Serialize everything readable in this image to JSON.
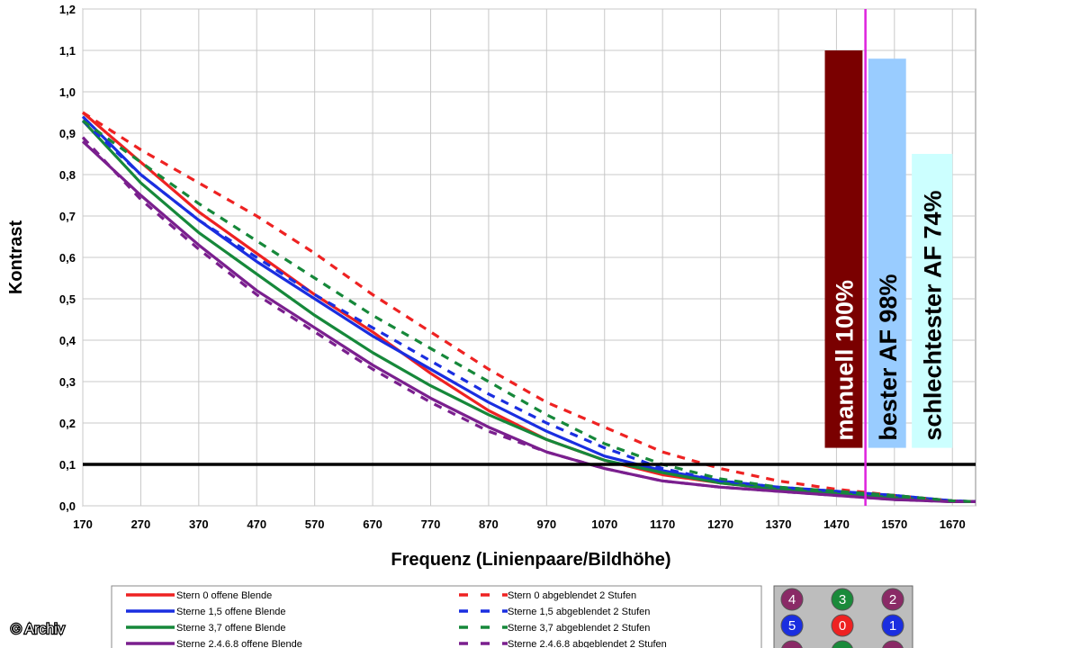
{
  "chart_data": {
    "type": "line",
    "title": "",
    "xlabel": "Frequenz (Linienpaare/Bildhöhe)",
    "ylabel": "Kontrast",
    "xlim": [
      170,
      1710
    ],
    "ylim": [
      0,
      1.2
    ],
    "x_ticks": [
      "170",
      "270",
      "370",
      "470",
      "570",
      "670",
      "770",
      "870",
      "970",
      "1070",
      "1170",
      "1270",
      "1370",
      "1470",
      "1570",
      "1670"
    ],
    "y_ticks": [
      "0,0",
      "0,1",
      "0,2",
      "0,3",
      "0,4",
      "0,5",
      "0,6",
      "0,7",
      "0,8",
      "0,9",
      "1,0",
      "1,1",
      "1,2"
    ],
    "grid": true,
    "colors": {
      "red": "#ee2222",
      "blue": "#1a2ee0",
      "green": "#16883a",
      "purple": "#7a1f8e"
    },
    "x": [
      170,
      270,
      370,
      470,
      570,
      670,
      770,
      870,
      970,
      1070,
      1170,
      1270,
      1370,
      1470,
      1570,
      1670,
      1710
    ],
    "series": [
      {
        "name": "Stern 0 offene Blende",
        "color": "#ee2222",
        "dash": false,
        "values": [
          0.95,
          0.83,
          0.71,
          0.61,
          0.51,
          0.42,
          0.32,
          0.23,
          0.16,
          0.11,
          0.075,
          0.055,
          0.04,
          0.03,
          0.02,
          0.01,
          0.01
        ]
      },
      {
        "name": "Sterne 1,5 offene Blende",
        "color": "#1a2ee0",
        "dash": false,
        "values": [
          0.94,
          0.8,
          0.69,
          0.59,
          0.5,
          0.41,
          0.33,
          0.25,
          0.18,
          0.12,
          0.085,
          0.06,
          0.045,
          0.035,
          0.025,
          0.012,
          0.01
        ]
      },
      {
        "name": "Sterne 3,7 offene Blende",
        "color": "#16883a",
        "dash": false,
        "values": [
          0.93,
          0.78,
          0.66,
          0.56,
          0.46,
          0.37,
          0.29,
          0.22,
          0.16,
          0.11,
          0.08,
          0.055,
          0.04,
          0.03,
          0.02,
          0.01,
          0.01
        ]
      },
      {
        "name": "Sterne 2,4,6,8 offene Blende",
        "color": "#7a1f8e",
        "dash": false,
        "values": [
          0.88,
          0.75,
          0.63,
          0.52,
          0.43,
          0.34,
          0.26,
          0.19,
          0.13,
          0.09,
          0.06,
          0.045,
          0.035,
          0.025,
          0.015,
          0.01,
          0.01
        ]
      },
      {
        "name": "Stern 0 abgeblendet 2 Stufen",
        "color": "#ee2222",
        "dash": true,
        "values": [
          0.95,
          0.86,
          0.78,
          0.7,
          0.61,
          0.51,
          0.42,
          0.33,
          0.25,
          0.19,
          0.13,
          0.09,
          0.06,
          0.04,
          0.025,
          0.012,
          0.01
        ]
      },
      {
        "name": "Sterne 1,5 abgeblendet 2 Stufen",
        "color": "#1a2ee0",
        "dash": true,
        "values": [
          0.93,
          0.8,
          0.69,
          0.6,
          0.51,
          0.43,
          0.35,
          0.27,
          0.2,
          0.14,
          0.09,
          0.06,
          0.045,
          0.035,
          0.025,
          0.012,
          0.01
        ]
      },
      {
        "name": "Sterne 3,7 abgeblendet 2 Stufen",
        "color": "#16883a",
        "dash": true,
        "values": [
          0.93,
          0.83,
          0.73,
          0.64,
          0.55,
          0.46,
          0.38,
          0.3,
          0.22,
          0.15,
          0.1,
          0.065,
          0.045,
          0.035,
          0.025,
          0.012,
          0.01
        ]
      },
      {
        "name": "Sterne 2,4,6,8 abgeblendet 2 Stufen",
        "color": "#7a1f8e",
        "dash": true,
        "values": [
          0.89,
          0.74,
          0.62,
          0.51,
          0.42,
          0.33,
          0.25,
          0.18,
          0.13,
          0.09,
          0.06,
          0.045,
          0.035,
          0.025,
          0.015,
          0.01,
          0.01
        ]
      }
    ],
    "reference_line": {
      "y": 0.1,
      "color": "#000000"
    },
    "marker_line": {
      "x": 1520,
      "color": "#dd22dd"
    },
    "bars": [
      {
        "label": "manuell 100%",
        "value": 1.1,
        "x_from": 1450,
        "x_to": 1515,
        "bottom": 0.14,
        "color": "#7a0000",
        "text_color": "#ffffff"
      },
      {
        "label": "bester AF 98%",
        "value": 1.08,
        "x_from": 1525,
        "x_to": 1590,
        "bottom": 0.14,
        "color": "#99ccff",
        "text_color": "#000000"
      },
      {
        "label": "schlechtester AF 74%",
        "value": 0.85,
        "x_from": 1600,
        "x_to": 1670,
        "bottom": 0.14,
        "color": "#ccffff",
        "text_color": "#000000"
      }
    ]
  },
  "legend": {
    "entries": [
      {
        "text": "Stern 0 offene Blende",
        "color": "#ee2222",
        "dash": false
      },
      {
        "text": "Sterne 1,5 offene Blende",
        "color": "#1a2ee0",
        "dash": false
      },
      {
        "text": "Sterne 3,7 offene Blende",
        "color": "#16883a",
        "dash": false
      },
      {
        "text": "Sterne 2.4.6.8 offene Blende",
        "color": "#7a1f8e",
        "dash": false
      },
      {
        "text": "Stern 0 abgeblendet 2 Stufen",
        "color": "#ee2222",
        "dash": true
      },
      {
        "text": "Sterne 1,5 abgeblendet 2 Stufen",
        "color": "#1a2ee0",
        "dash": true
      },
      {
        "text": "Sterne 3,7 abgeblendet 2 Stufen",
        "color": "#16883a",
        "dash": true
      },
      {
        "text": "Sterne 2.4.6.8 abgeblendet 2 Stufen",
        "color": "#7a1f8e",
        "dash": true
      }
    ]
  },
  "star_selector": {
    "circles": [
      {
        "num": "4",
        "color": "#8a2a66"
      },
      {
        "num": "3",
        "color": "#1a8a3a"
      },
      {
        "num": "2",
        "color": "#8a2a66"
      },
      {
        "num": "5",
        "color": "#1a2ee0"
      },
      {
        "num": "0",
        "color": "#ee2222"
      },
      {
        "num": "1",
        "color": "#1a2ee0"
      },
      {
        "num": "",
        "color": "#8a2a66"
      },
      {
        "num": "",
        "color": "#1a8a3a"
      },
      {
        "num": "",
        "color": "#8a2a66"
      }
    ]
  },
  "credit": "© Archiv"
}
